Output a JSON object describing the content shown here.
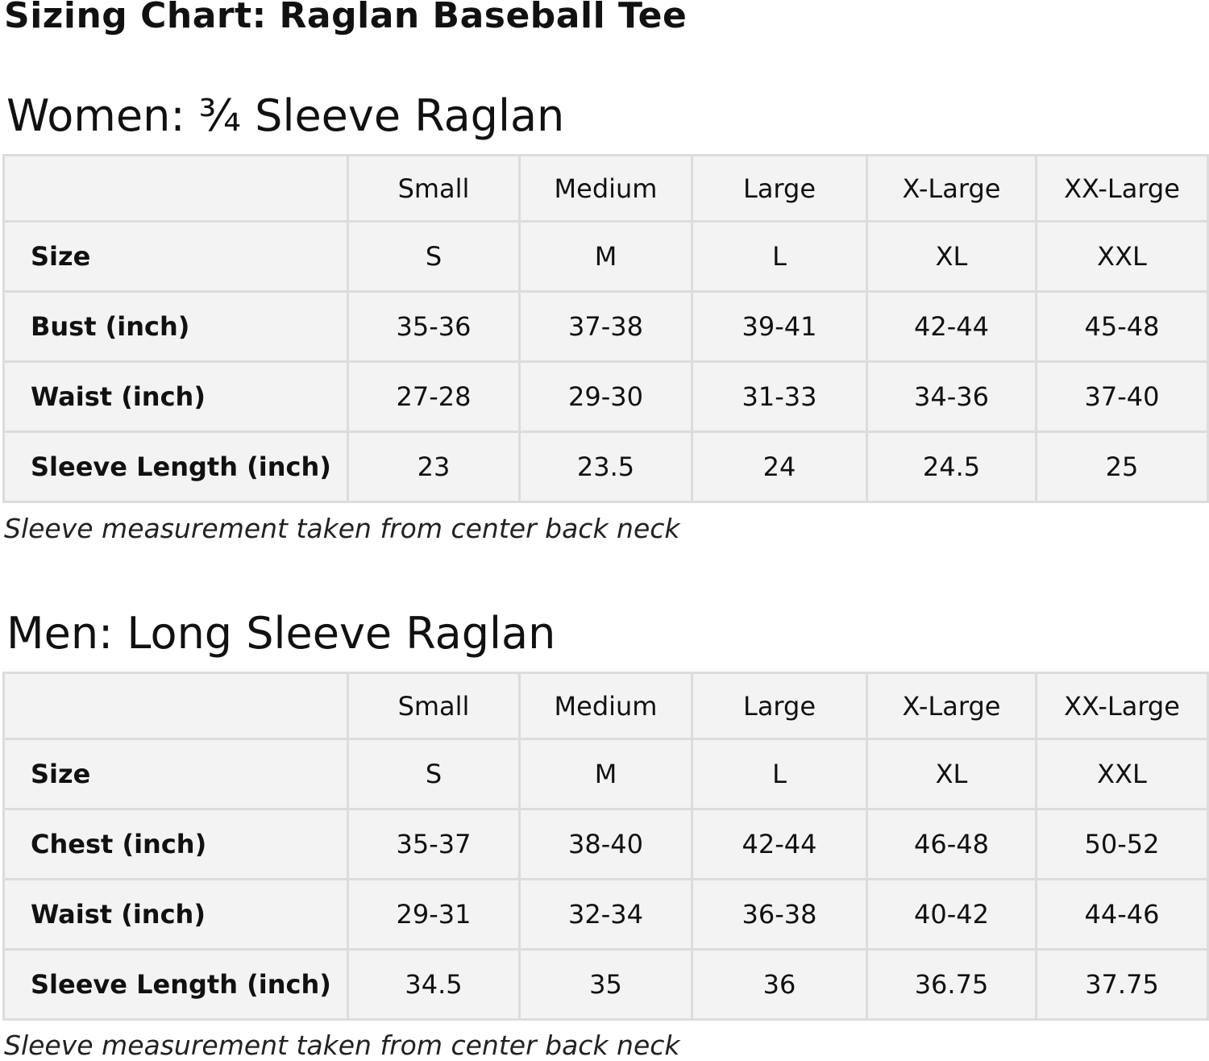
{
  "title": "Sizing Chart: Raglan Baseball Tee",
  "sections": [
    {
      "heading": "Women: ¾ Sleeve Raglan",
      "columns": [
        "Small",
        "Medium",
        "Large",
        "X-Large",
        "XX-Large"
      ],
      "rows": [
        {
          "label": "Size",
          "values": [
            "S",
            "M",
            "L",
            "XL",
            "XXL"
          ]
        },
        {
          "label": "Bust (inch)",
          "values": [
            "35-36",
            "37-38",
            "39-41",
            "42-44",
            "45-48"
          ]
        },
        {
          "label": "Waist (inch)",
          "values": [
            "27-28",
            "29-30",
            "31-33",
            "34-36",
            "37-40"
          ]
        },
        {
          "label": "Sleeve Length (inch)",
          "values": [
            "23",
            "23.5",
            "24",
            "24.5",
            "25"
          ]
        }
      ],
      "note": "Sleeve measurement taken from center back neck"
    },
    {
      "heading": "Men: Long Sleeve Raglan",
      "columns": [
        "Small",
        "Medium",
        "Large",
        "X-Large",
        "XX-Large"
      ],
      "rows": [
        {
          "label": "Size",
          "values": [
            "S",
            "M",
            "L",
            "XL",
            "XXL"
          ]
        },
        {
          "label": "Chest (inch)",
          "values": [
            "35-37",
            "38-40",
            "42-44",
            "46-48",
            "50-52"
          ]
        },
        {
          "label": "Waist (inch)",
          "values": [
            "29-31",
            "32-34",
            "36-38",
            "40-42",
            "44-46"
          ]
        },
        {
          "label": "Sleeve Length (inch)",
          "values": [
            "34.5",
            "35",
            "36",
            "36.75",
            "37.75"
          ]
        }
      ],
      "note": "Sleeve measurement taken from center back neck"
    }
  ]
}
